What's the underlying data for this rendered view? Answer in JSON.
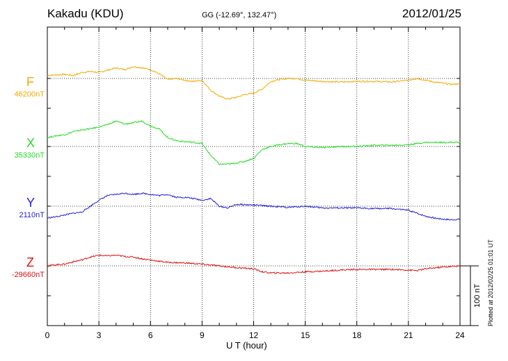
{
  "header": {
    "station": "Kakadu (KDU)",
    "coords": "GG (-12.69°, 132.47°)",
    "date": "2012/01/25"
  },
  "footer": {
    "plotted": "Plotted at 2012/02/25 01:01  UT"
  },
  "chart_data": {
    "type": "line",
    "title": "Kakadu (KDU)",
    "xlabel": "U T (hour)",
    "ylabel": "",
    "xlim": [
      0,
      24
    ],
    "x_ticks": [
      "0",
      "3",
      "6",
      "9",
      "12",
      "15",
      "18",
      "21",
      "24"
    ],
    "grid": true,
    "units": "nT",
    "scale_bar": {
      "label": "100 nT",
      "value": 100
    },
    "series": [
      {
        "name": "F",
        "base_label": "46200nT",
        "baseline": 46200,
        "color": "#f5a800",
        "x": [
          0,
          1,
          1.5,
          2,
          2.5,
          3,
          3.5,
          4,
          4.5,
          5,
          5.5,
          6,
          6.5,
          7,
          7.5,
          8,
          8.5,
          9,
          9.5,
          10,
          10.5,
          11,
          11.5,
          12,
          12.5,
          13,
          13.5,
          14,
          14.5,
          15,
          16,
          17,
          18,
          19,
          20,
          21,
          21.5,
          22,
          22.5,
          23,
          23.5,
          24
        ],
        "y": [
          5,
          7,
          5,
          10,
          12,
          10,
          14,
          18,
          15,
          20,
          18,
          15,
          8,
          -2,
          0,
          -3,
          -5,
          -3,
          -20,
          -30,
          -35,
          -32,
          -27,
          -25,
          -18,
          -5,
          -2,
          0,
          0,
          -3,
          -5,
          -6,
          -5,
          -5,
          -6,
          -3,
          0,
          -3,
          -6,
          -8,
          -10,
          -9
        ]
      },
      {
        "name": "X",
        "base_label": "35330nT",
        "baseline": 35330,
        "color": "#22dd22",
        "x": [
          0,
          0.5,
          1,
          1.5,
          2,
          2.5,
          3,
          3.5,
          4,
          4.5,
          5,
          5.5,
          6,
          6.5,
          7,
          7.5,
          8,
          8.5,
          9,
          9.5,
          10,
          10.5,
          11,
          11.5,
          12,
          12.5,
          13,
          13.5,
          14,
          14.5,
          15,
          16,
          17,
          18,
          19,
          20,
          21,
          21.5,
          22,
          23,
          24
        ],
        "y": [
          15,
          18,
          20,
          25,
          28,
          30,
          33,
          37,
          43,
          38,
          40,
          43,
          35,
          30,
          15,
          10,
          8,
          7,
          5,
          -15,
          -30,
          -30,
          -28,
          -25,
          -20,
          -5,
          0,
          3,
          5,
          5,
          0,
          -2,
          0,
          0,
          2,
          2,
          3,
          5,
          7,
          7,
          7
        ]
      },
      {
        "name": "Y",
        "base_label": "2110nT",
        "baseline": 2110,
        "color": "#2020dd",
        "x": [
          0,
          0.5,
          1,
          1.5,
          2,
          2.5,
          3,
          3.5,
          4,
          4.5,
          5,
          5.5,
          6,
          6.5,
          7,
          7.5,
          8,
          8.5,
          9,
          9.5,
          10,
          10.5,
          11,
          12,
          13,
          14,
          15,
          16,
          17,
          18,
          19,
          20,
          21,
          21.5,
          22,
          22.5,
          23,
          23.5,
          24
        ],
        "y": [
          -20,
          -18,
          -15,
          -12,
          -10,
          0,
          10,
          18,
          20,
          22,
          20,
          22,
          20,
          18,
          20,
          15,
          15,
          13,
          10,
          13,
          0,
          -3,
          3,
          2,
          0,
          -2,
          0,
          -3,
          -3,
          -3,
          -4,
          -4,
          -7,
          -12,
          -17,
          -20,
          -22,
          -23,
          -22
        ]
      },
      {
        "name": "Z",
        "base_label": "-29660nT",
        "baseline": -29660,
        "color": "#e01010",
        "x": [
          0,
          0.5,
          1,
          1.5,
          2,
          2.5,
          3,
          3.5,
          4,
          4.5,
          5,
          5.5,
          6,
          6.5,
          7,
          8,
          9,
          10,
          11,
          12,
          12.5,
          13,
          14,
          15,
          16,
          17,
          18,
          19,
          20,
          21,
          21.5,
          22,
          23,
          24
        ],
        "y": [
          0,
          2,
          3,
          7,
          10,
          15,
          18,
          17,
          18,
          16,
          15,
          12,
          10,
          8,
          6,
          5,
          3,
          0,
          -3,
          -5,
          -10,
          -12,
          -12,
          -10,
          -9,
          -7,
          -6,
          -6,
          -6,
          -7,
          -8,
          -5,
          -2,
          0
        ]
      }
    ]
  }
}
